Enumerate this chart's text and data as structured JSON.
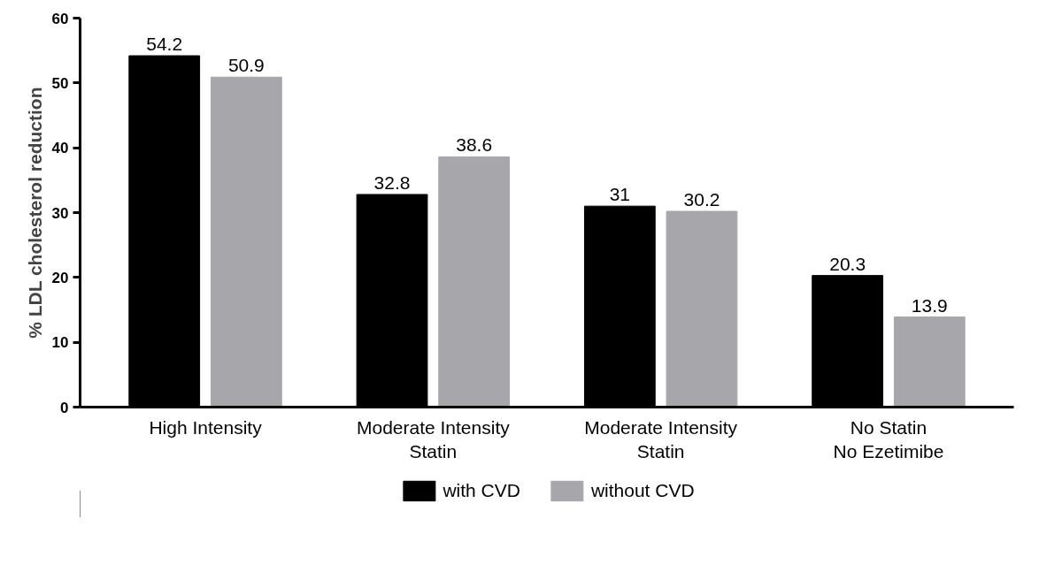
{
  "chart_data": {
    "type": "bar",
    "ylabel": "% LDL cholesterol reduction",
    "categories": [
      "High Intensity",
      "Moderate Intensity\nStatin",
      "Moderate Intensity\nStatin",
      "No Statin\nNo Ezetimibe"
    ],
    "series": [
      {
        "name": "with CVD",
        "color": "#000000",
        "values": [
          54.2,
          32.8,
          31,
          20.3
        ]
      },
      {
        "name": "without CVD",
        "color": "#a7a6ab",
        "values": [
          50.9,
          38.6,
          30.2,
          13.9
        ]
      }
    ],
    "ylim": [
      0,
      60
    ],
    "yticks": [
      0,
      10,
      20,
      30,
      40,
      50,
      60
    ],
    "grid": false,
    "legend": "bottom",
    "data_labels": true
  }
}
